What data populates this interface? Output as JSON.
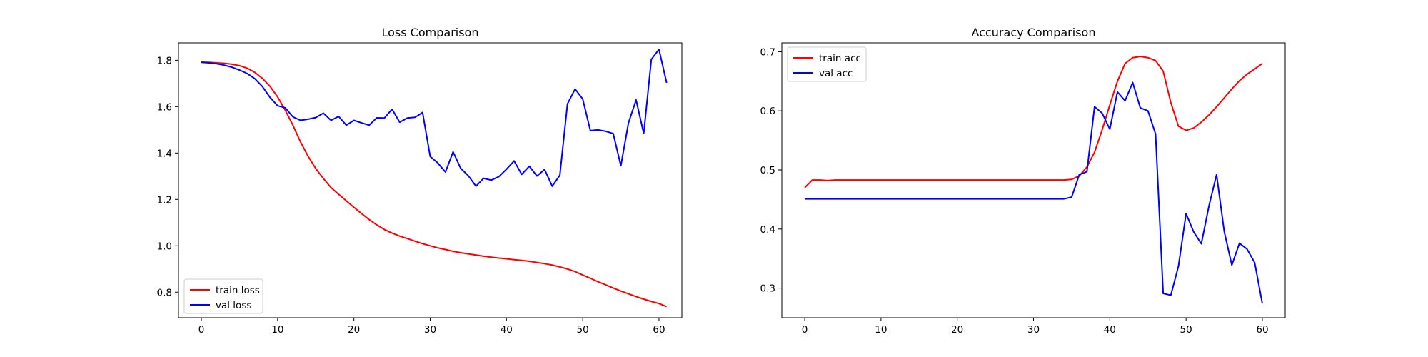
{
  "chart_data": [
    {
      "type": "line",
      "title": "Loss Comparison",
      "xlabel": "",
      "ylabel": "",
      "xlim": [
        -3,
        63
      ],
      "ylim": [
        0.69,
        1.875
      ],
      "xticks": [
        0,
        10,
        20,
        30,
        40,
        50,
        60
      ],
      "yticks": [
        0.8,
        1.0,
        1.2,
        1.4,
        1.6,
        1.8
      ],
      "ytick_labels": [
        "0.8",
        "1.0",
        "1.2",
        "1.4",
        "1.6",
        "1.8"
      ],
      "legend": "lower-left",
      "grid": false,
      "series": [
        {
          "name": "train loss",
          "color": "#ff0000",
          "values": [
            1.792,
            1.791,
            1.789,
            1.787,
            1.783,
            1.777,
            1.766,
            1.748,
            1.722,
            1.688,
            1.642,
            1.585,
            1.52,
            1.448,
            1.386,
            1.333,
            1.29,
            1.251,
            1.222,
            1.194,
            1.166,
            1.139,
            1.113,
            1.09,
            1.07,
            1.055,
            1.042,
            1.031,
            1.02,
            1.009,
            1.0,
            0.991,
            0.984,
            0.976,
            0.97,
            0.965,
            0.96,
            0.955,
            0.951,
            0.947,
            0.944,
            0.94,
            0.937,
            0.933,
            0.928,
            0.923,
            0.917,
            0.909,
            0.9,
            0.889,
            0.874,
            0.86,
            0.845,
            0.832,
            0.818,
            0.805,
            0.793,
            0.781,
            0.77,
            0.76,
            0.751,
            0.738
          ]
        },
        {
          "name": "val loss",
          "color": "#0000ff",
          "values": [
            1.791,
            1.789,
            1.785,
            1.779,
            1.77,
            1.758,
            1.743,
            1.721,
            1.687,
            1.64,
            1.604,
            1.595,
            1.556,
            1.541,
            1.546,
            1.553,
            1.572,
            1.541,
            1.558,
            1.52,
            1.541,
            1.53,
            1.52,
            1.552,
            1.551,
            1.589,
            1.533,
            1.551,
            1.554,
            1.575,
            1.385,
            1.357,
            1.318,
            1.405,
            1.334,
            1.302,
            1.257,
            1.291,
            1.283,
            1.298,
            1.33,
            1.366,
            1.308,
            1.343,
            1.301,
            1.329,
            1.257,
            1.304,
            1.612,
            1.676,
            1.633,
            1.497,
            1.5,
            1.494,
            1.484,
            1.345,
            1.53,
            1.629,
            1.484,
            1.804,
            1.847,
            1.703
          ]
        }
      ]
    },
    {
      "type": "line",
      "title": "Accuracy Comparison",
      "xlabel": "",
      "ylabel": "",
      "xlim": [
        -3,
        63
      ],
      "ylim": [
        0.25,
        0.715
      ],
      "xticks": [
        0,
        10,
        20,
        30,
        40,
        50,
        60
      ],
      "yticks": [
        0.3,
        0.4,
        0.5,
        0.6,
        0.7
      ],
      "ytick_labels": [
        "0.3",
        "0.4",
        "0.5",
        "0.6",
        "0.7"
      ],
      "legend": "top-left",
      "grid": false,
      "series": [
        {
          "name": "train acc",
          "color": "#ff0000",
          "values": [
            0.47,
            0.483,
            0.483,
            0.482,
            0.483,
            0.483,
            0.483,
            0.483,
            0.483,
            0.483,
            0.483,
            0.483,
            0.483,
            0.483,
            0.483,
            0.483,
            0.483,
            0.483,
            0.483,
            0.483,
            0.483,
            0.483,
            0.483,
            0.483,
            0.483,
            0.483,
            0.483,
            0.483,
            0.483,
            0.483,
            0.483,
            0.483,
            0.483,
            0.483,
            0.483,
            0.484,
            0.49,
            0.505,
            0.53,
            0.568,
            0.61,
            0.65,
            0.68,
            0.69,
            0.692,
            0.69,
            0.685,
            0.667,
            0.614,
            0.574,
            0.567,
            0.571,
            0.581,
            0.593,
            0.607,
            0.622,
            0.637,
            0.651,
            0.662,
            0.671,
            0.68
          ]
        },
        {
          "name": "val acc",
          "color": "#0000ff",
          "values": [
            0.451,
            0.451,
            0.451,
            0.451,
            0.451,
            0.451,
            0.451,
            0.451,
            0.451,
            0.451,
            0.451,
            0.451,
            0.451,
            0.451,
            0.451,
            0.451,
            0.451,
            0.451,
            0.451,
            0.451,
            0.451,
            0.451,
            0.451,
            0.451,
            0.451,
            0.451,
            0.451,
            0.451,
            0.451,
            0.451,
            0.451,
            0.451,
            0.451,
            0.451,
            0.451,
            0.454,
            0.492,
            0.497,
            0.607,
            0.596,
            0.569,
            0.632,
            0.617,
            0.648,
            0.605,
            0.6,
            0.561,
            0.291,
            0.288,
            0.337,
            0.426,
            0.395,
            0.375,
            0.439,
            0.492,
            0.396,
            0.339,
            0.376,
            0.366,
            0.343,
            0.274
          ]
        }
      ]
    }
  ]
}
